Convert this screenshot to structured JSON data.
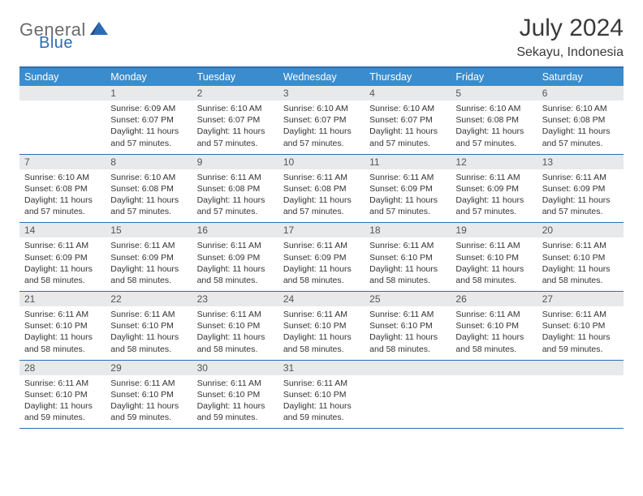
{
  "logo": {
    "part1": "General",
    "part2": "Blue"
  },
  "title": "July 2024",
  "location": "Sekayu, Indonesia",
  "colors": {
    "header_bg": "#3b8ccc",
    "border": "#2d6cb5",
    "daynum_bg": "#e7e9ea",
    "text": "#333333",
    "logo_gray": "#6b6b6b",
    "logo_blue": "#2d6cb5"
  },
  "weekdays": [
    "Sunday",
    "Monday",
    "Tuesday",
    "Wednesday",
    "Thursday",
    "Friday",
    "Saturday"
  ],
  "weeks": [
    [
      {
        "n": "",
        "l1": "",
        "l2": "",
        "l3": "",
        "l4": ""
      },
      {
        "n": "1",
        "l1": "Sunrise: 6:09 AM",
        "l2": "Sunset: 6:07 PM",
        "l3": "Daylight: 11 hours",
        "l4": "and 57 minutes."
      },
      {
        "n": "2",
        "l1": "Sunrise: 6:10 AM",
        "l2": "Sunset: 6:07 PM",
        "l3": "Daylight: 11 hours",
        "l4": "and 57 minutes."
      },
      {
        "n": "3",
        "l1": "Sunrise: 6:10 AM",
        "l2": "Sunset: 6:07 PM",
        "l3": "Daylight: 11 hours",
        "l4": "and 57 minutes."
      },
      {
        "n": "4",
        "l1": "Sunrise: 6:10 AM",
        "l2": "Sunset: 6:07 PM",
        "l3": "Daylight: 11 hours",
        "l4": "and 57 minutes."
      },
      {
        "n": "5",
        "l1": "Sunrise: 6:10 AM",
        "l2": "Sunset: 6:08 PM",
        "l3": "Daylight: 11 hours",
        "l4": "and 57 minutes."
      },
      {
        "n": "6",
        "l1": "Sunrise: 6:10 AM",
        "l2": "Sunset: 6:08 PM",
        "l3": "Daylight: 11 hours",
        "l4": "and 57 minutes."
      }
    ],
    [
      {
        "n": "7",
        "l1": "Sunrise: 6:10 AM",
        "l2": "Sunset: 6:08 PM",
        "l3": "Daylight: 11 hours",
        "l4": "and 57 minutes."
      },
      {
        "n": "8",
        "l1": "Sunrise: 6:10 AM",
        "l2": "Sunset: 6:08 PM",
        "l3": "Daylight: 11 hours",
        "l4": "and 57 minutes."
      },
      {
        "n": "9",
        "l1": "Sunrise: 6:11 AM",
        "l2": "Sunset: 6:08 PM",
        "l3": "Daylight: 11 hours",
        "l4": "and 57 minutes."
      },
      {
        "n": "10",
        "l1": "Sunrise: 6:11 AM",
        "l2": "Sunset: 6:08 PM",
        "l3": "Daylight: 11 hours",
        "l4": "and 57 minutes."
      },
      {
        "n": "11",
        "l1": "Sunrise: 6:11 AM",
        "l2": "Sunset: 6:09 PM",
        "l3": "Daylight: 11 hours",
        "l4": "and 57 minutes."
      },
      {
        "n": "12",
        "l1": "Sunrise: 6:11 AM",
        "l2": "Sunset: 6:09 PM",
        "l3": "Daylight: 11 hours",
        "l4": "and 57 minutes."
      },
      {
        "n": "13",
        "l1": "Sunrise: 6:11 AM",
        "l2": "Sunset: 6:09 PM",
        "l3": "Daylight: 11 hours",
        "l4": "and 57 minutes."
      }
    ],
    [
      {
        "n": "14",
        "l1": "Sunrise: 6:11 AM",
        "l2": "Sunset: 6:09 PM",
        "l3": "Daylight: 11 hours",
        "l4": "and 58 minutes."
      },
      {
        "n": "15",
        "l1": "Sunrise: 6:11 AM",
        "l2": "Sunset: 6:09 PM",
        "l3": "Daylight: 11 hours",
        "l4": "and 58 minutes."
      },
      {
        "n": "16",
        "l1": "Sunrise: 6:11 AM",
        "l2": "Sunset: 6:09 PM",
        "l3": "Daylight: 11 hours",
        "l4": "and 58 minutes."
      },
      {
        "n": "17",
        "l1": "Sunrise: 6:11 AM",
        "l2": "Sunset: 6:09 PM",
        "l3": "Daylight: 11 hours",
        "l4": "and 58 minutes."
      },
      {
        "n": "18",
        "l1": "Sunrise: 6:11 AM",
        "l2": "Sunset: 6:10 PM",
        "l3": "Daylight: 11 hours",
        "l4": "and 58 minutes."
      },
      {
        "n": "19",
        "l1": "Sunrise: 6:11 AM",
        "l2": "Sunset: 6:10 PM",
        "l3": "Daylight: 11 hours",
        "l4": "and 58 minutes."
      },
      {
        "n": "20",
        "l1": "Sunrise: 6:11 AM",
        "l2": "Sunset: 6:10 PM",
        "l3": "Daylight: 11 hours",
        "l4": "and 58 minutes."
      }
    ],
    [
      {
        "n": "21",
        "l1": "Sunrise: 6:11 AM",
        "l2": "Sunset: 6:10 PM",
        "l3": "Daylight: 11 hours",
        "l4": "and 58 minutes."
      },
      {
        "n": "22",
        "l1": "Sunrise: 6:11 AM",
        "l2": "Sunset: 6:10 PM",
        "l3": "Daylight: 11 hours",
        "l4": "and 58 minutes."
      },
      {
        "n": "23",
        "l1": "Sunrise: 6:11 AM",
        "l2": "Sunset: 6:10 PM",
        "l3": "Daylight: 11 hours",
        "l4": "and 58 minutes."
      },
      {
        "n": "24",
        "l1": "Sunrise: 6:11 AM",
        "l2": "Sunset: 6:10 PM",
        "l3": "Daylight: 11 hours",
        "l4": "and 58 minutes."
      },
      {
        "n": "25",
        "l1": "Sunrise: 6:11 AM",
        "l2": "Sunset: 6:10 PM",
        "l3": "Daylight: 11 hours",
        "l4": "and 58 minutes."
      },
      {
        "n": "26",
        "l1": "Sunrise: 6:11 AM",
        "l2": "Sunset: 6:10 PM",
        "l3": "Daylight: 11 hours",
        "l4": "and 58 minutes."
      },
      {
        "n": "27",
        "l1": "Sunrise: 6:11 AM",
        "l2": "Sunset: 6:10 PM",
        "l3": "Daylight: 11 hours",
        "l4": "and 59 minutes."
      }
    ],
    [
      {
        "n": "28",
        "l1": "Sunrise: 6:11 AM",
        "l2": "Sunset: 6:10 PM",
        "l3": "Daylight: 11 hours",
        "l4": "and 59 minutes."
      },
      {
        "n": "29",
        "l1": "Sunrise: 6:11 AM",
        "l2": "Sunset: 6:10 PM",
        "l3": "Daylight: 11 hours",
        "l4": "and 59 minutes."
      },
      {
        "n": "30",
        "l1": "Sunrise: 6:11 AM",
        "l2": "Sunset: 6:10 PM",
        "l3": "Daylight: 11 hours",
        "l4": "and 59 minutes."
      },
      {
        "n": "31",
        "l1": "Sunrise: 6:11 AM",
        "l2": "Sunset: 6:10 PM",
        "l3": "Daylight: 11 hours",
        "l4": "and 59 minutes."
      },
      {
        "n": "",
        "l1": "",
        "l2": "",
        "l3": "",
        "l4": ""
      },
      {
        "n": "",
        "l1": "",
        "l2": "",
        "l3": "",
        "l4": ""
      },
      {
        "n": "",
        "l1": "",
        "l2": "",
        "l3": "",
        "l4": ""
      }
    ]
  ]
}
